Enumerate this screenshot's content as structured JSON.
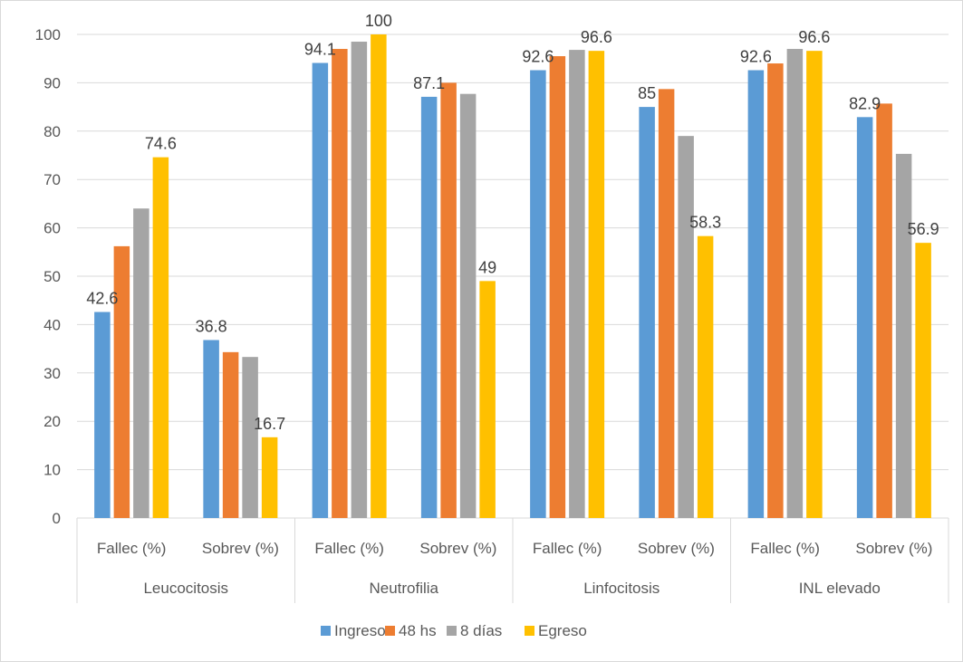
{
  "chart_data": {
    "type": "bar",
    "groups": [
      "Leucocitosis",
      "Neutrofilia",
      "Linfocitosis",
      "INL elevado"
    ],
    "categories": [
      "Fallec (%)",
      "Sobrev (%)",
      "Fallec (%)",
      "Sobrev (%)",
      "Fallec (%)",
      "Sobrev (%)",
      "Fallec (%)",
      "Sobrev (%)"
    ],
    "series": [
      {
        "name": "Ingreso",
        "color": "#5B9BD5",
        "values": [
          42.6,
          36.8,
          94.1,
          87.1,
          92.6,
          85,
          92.6,
          82.9
        ]
      },
      {
        "name": "48 hs",
        "color": "#ED7D31",
        "values": [
          56.2,
          34.3,
          97,
          90,
          95.5,
          88.7,
          94,
          85.7
        ]
      },
      {
        "name": "8 días",
        "color": "#A5A5A5",
        "values": [
          64,
          33.3,
          98.5,
          87.7,
          96.8,
          79,
          97,
          75.3
        ]
      },
      {
        "name": "Egreso",
        "color": "#FFC000",
        "values": [
          74.6,
          16.7,
          100,
          49,
          96.6,
          58.3,
          96.6,
          56.9
        ]
      }
    ],
    "data_labels": [
      {
        "series": 0,
        "index": 0,
        "text": "42.6"
      },
      {
        "series": 3,
        "index": 0,
        "text": "74.6"
      },
      {
        "series": 0,
        "index": 1,
        "text": "36.8"
      },
      {
        "series": 3,
        "index": 1,
        "text": "16.7"
      },
      {
        "series": 0,
        "index": 2,
        "text": "94.1"
      },
      {
        "series": 3,
        "index": 2,
        "text": "100"
      },
      {
        "series": 0,
        "index": 3,
        "text": "87.1"
      },
      {
        "series": 3,
        "index": 3,
        "text": "49"
      },
      {
        "series": 0,
        "index": 4,
        "text": "92.6"
      },
      {
        "series": 3,
        "index": 4,
        "text": "96.6"
      },
      {
        "series": 0,
        "index": 5,
        "text": "85"
      },
      {
        "series": 3,
        "index": 5,
        "text": "58.3"
      },
      {
        "series": 0,
        "index": 6,
        "text": "92.6"
      },
      {
        "series": 3,
        "index": 6,
        "text": "96.6"
      },
      {
        "series": 0,
        "index": 7,
        "text": "82.9"
      },
      {
        "series": 3,
        "index": 7,
        "text": "56.9"
      }
    ],
    "y_ticks": [
      "0",
      "10",
      "20",
      "30",
      "40",
      "50",
      "60",
      "70",
      "80",
      "90",
      "100"
    ],
    "ylim": [
      0,
      100
    ],
    "grid": true,
    "legend": "bottom"
  }
}
